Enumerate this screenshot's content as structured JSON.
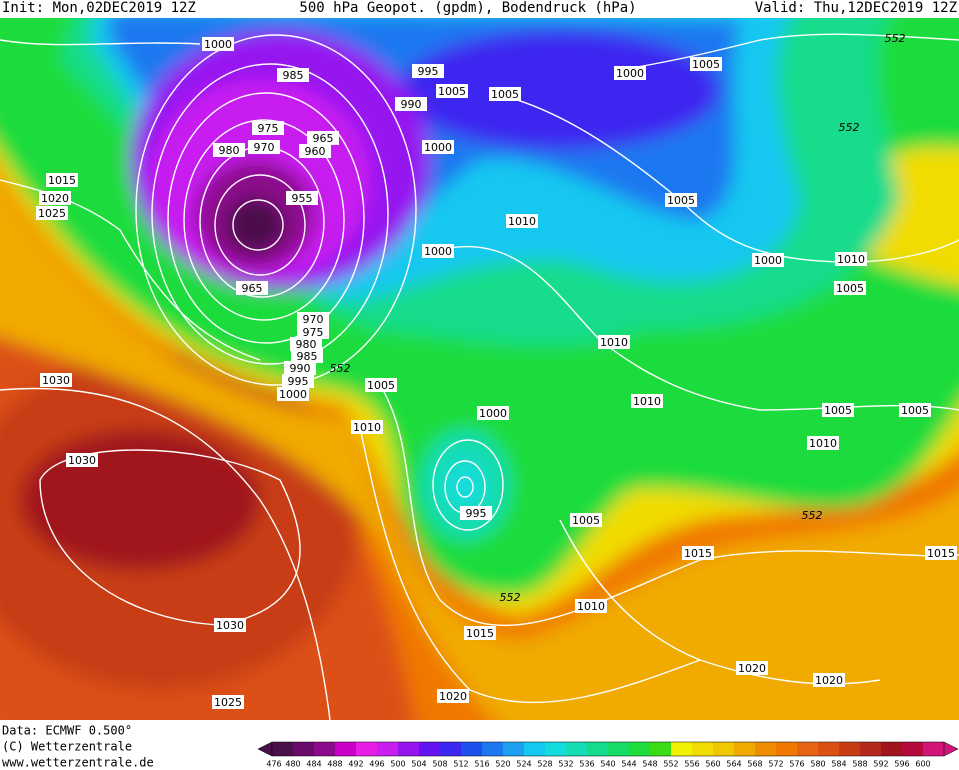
{
  "header": {
    "init": "Init: Mon,02DEC2019 12Z",
    "title": "500 hPa Geopot. (gpdm), Bodendruck (hPa)",
    "valid": "Valid: Thu,12DEC2019 12Z"
  },
  "isobar_labels": [
    "1000",
    "985",
    "995",
    "1005",
    "1005",
    "1000",
    "1005",
    "990",
    "975",
    "970",
    "965",
    "960",
    "980",
    "1000",
    "955",
    "1015",
    "1020",
    "1025",
    "1010",
    "1005",
    "1000",
    "1000",
    "1010",
    "1005",
    "965",
    "970",
    "975",
    "980",
    "985",
    "990",
    "995",
    "1000",
    "1030",
    "1005",
    "1010",
    "1010",
    "1010",
    "1000",
    "1005",
    "1005",
    "1010",
    "1030",
    "995",
    "1005",
    "1015",
    "1015",
    "1010",
    "1015",
    "1030",
    "1020",
    "1020",
    "1020",
    "1025"
  ],
  "height_labels": [
    "552",
    "552",
    "552",
    "552",
    "552"
  ],
  "footer": {
    "data": "Data: ECMWF  0.500°",
    "copyright": "(C) Wetterzentrale",
    "url": "www.wetterzentrale.de"
  },
  "colorbar": {
    "labels": [
      "476",
      "480",
      "484",
      "488",
      "492",
      "496",
      "500",
      "504",
      "508",
      "512",
      "516",
      "520",
      "524",
      "528",
      "532",
      "536",
      "540",
      "544",
      "548",
      "552",
      "556",
      "560",
      "564",
      "568",
      "572",
      "576",
      "580",
      "584",
      "588",
      "592",
      "596",
      "600"
    ],
    "colors": [
      "#4b0f4b",
      "#6a0a6a",
      "#8c0a8c",
      "#c800c8",
      "#e61ee6",
      "#c81ef0",
      "#9614f0",
      "#6414f0",
      "#3c28f0",
      "#1e50f0",
      "#1e78f0",
      "#1ea0f0",
      "#14c8f0",
      "#14dcdc",
      "#14dcb4",
      "#14dc8c",
      "#14dc64",
      "#1edc3c",
      "#3cdc14",
      "#f0f000",
      "#f0dc00",
      "#f0c800",
      "#f0aa00",
      "#f08c00",
      "#f07800",
      "#e66414",
      "#dc5014",
      "#c83c14",
      "#b4281e",
      "#a0141e",
      "#b40a3c",
      "#d21478"
    ]
  }
}
